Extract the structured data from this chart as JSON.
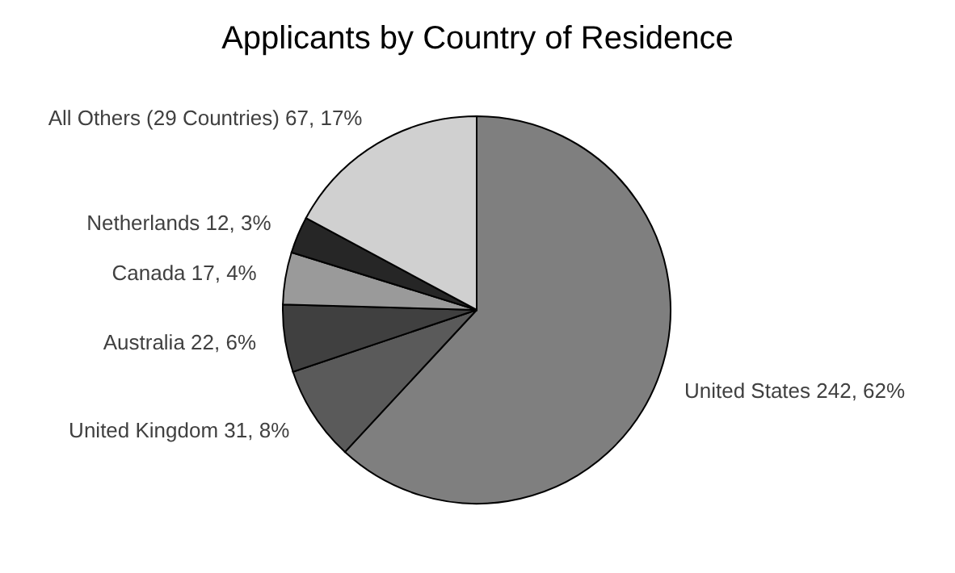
{
  "chart_data": {
    "type": "pie",
    "title": "Applicants by Country of Residence",
    "categories": [
      "United States",
      "United Kingdom",
      "Australia",
      "Canada",
      "Netherlands",
      "All Others (29 Countries)"
    ],
    "values": [
      242,
      31,
      22,
      17,
      12,
      67
    ],
    "colors": [
      "#7f7f7f",
      "#5a5a5a",
      "#404040",
      "#9a9a9a",
      "#262626",
      "#d0d0d0"
    ],
    "value_labels": [
      "242, 62%",
      "31, 8%",
      "22, 6%",
      "17, 4%",
      "12, 3%",
      "67, 17%"
    ]
  }
}
